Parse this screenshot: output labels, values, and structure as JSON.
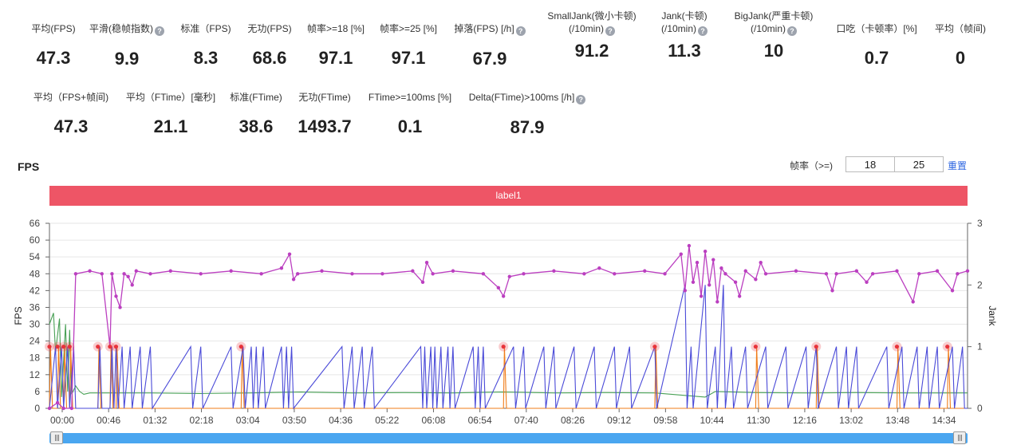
{
  "stats_row1": [
    {
      "label": "平均(FPS)",
      "value": "47.3",
      "help": false
    },
    {
      "label": "平滑(稳帧指数)",
      "value": "9.9",
      "help": true
    },
    {
      "label": "标准（FPS)",
      "value": "8.3",
      "help": false
    },
    {
      "label": "无功(FPS)",
      "value": "68.6",
      "help": false
    },
    {
      "label": "帧率>=18 [%]",
      "value": "97.1",
      "help": false
    },
    {
      "label": "帧率>=25 [%]",
      "value": "97.1",
      "help": false
    },
    {
      "label": "掉落(FPS) [/h]",
      "value": "67.9",
      "help": true
    },
    {
      "label": "SmallJank(微小卡顿)",
      "label2": "(/10min)",
      "value": "91.2",
      "help": true
    },
    {
      "label": "Jank(卡顿)",
      "label2": "(/10min)",
      "value": "11.3",
      "help": true
    },
    {
      "label": "BigJank(严重卡顿)",
      "label2": "(/10min)",
      "value": "10",
      "help": true
    },
    {
      "label": "口吃（卡顿率）[%]",
      "value": "0.7",
      "help": false
    },
    {
      "label": "平均（帧间)",
      "value": "0",
      "help": false
    }
  ],
  "stats_row2": [
    {
      "label": "平均（FPS+帧间)",
      "value": "47.3",
      "help": false
    },
    {
      "label": "平均（FTime）[毫秒]",
      "value": "21.1",
      "help": false
    },
    {
      "label": "标准(FTime)",
      "value": "38.6",
      "help": false
    },
    {
      "label": "无功(FTime)",
      "value": "1493.7",
      "help": false
    },
    {
      "label": "FTime>=100ms [%]",
      "value": "0.1",
      "help": false
    },
    {
      "label": "Delta(FTime)>100ms [/h]",
      "value": "87.9",
      "help": true
    }
  ],
  "help_icon": "question-icon",
  "chart_section": {
    "title": "FPS",
    "framerate_label": "帧率（>=)",
    "threshold_low": "18",
    "threshold_high": "25",
    "reset_label": "重置",
    "label_bar_text": "label1"
  },
  "colors": {
    "fps_line": "#bb3fc0",
    "jank_line": "#4a4ad8",
    "green_line": "#48a055",
    "orange_line": "#f07d1a",
    "bigjank_marker": "#e8333a",
    "label_bar": "#ee5566",
    "slider": "#4aa6f0"
  },
  "chart_data": {
    "type": "line",
    "x_unit": "mm:ss",
    "x_range": [
      0,
      910
    ],
    "x_ticks": [
      "00:00",
      "00:46",
      "01:32",
      "02:18",
      "03:04",
      "03:50",
      "04:36",
      "05:22",
      "06:08",
      "06:54",
      "07:40",
      "08:26",
      "09:12",
      "09:58",
      "10:44",
      "11:30",
      "12:16",
      "13:02",
      "13:48",
      "14:34"
    ],
    "y_left": {
      "label": "FPS",
      "ticks": [
        0,
        6,
        12,
        18,
        24,
        30,
        36,
        42,
        48,
        54,
        60,
        66
      ],
      "range": [
        0,
        66
      ]
    },
    "y_right": {
      "label": "Jank",
      "ticks": [
        0,
        1,
        2,
        3
      ],
      "range": [
        0,
        3
      ]
    },
    "series": [
      {
        "name": "FPS",
        "axis": "left",
        "markers": true,
        "points": [
          [
            0,
            0
          ],
          [
            8,
            2
          ],
          [
            14,
            0
          ],
          [
            22,
            0
          ],
          [
            26,
            48
          ],
          [
            40,
            49
          ],
          [
            52,
            48
          ],
          [
            60,
            22
          ],
          [
            62,
            48
          ],
          [
            66,
            40
          ],
          [
            70,
            36
          ],
          [
            74,
            48
          ],
          [
            78,
            47
          ],
          [
            82,
            44
          ],
          [
            86,
            49
          ],
          [
            100,
            48
          ],
          [
            120,
            49
          ],
          [
            150,
            48
          ],
          [
            180,
            49
          ],
          [
            210,
            48
          ],
          [
            230,
            50
          ],
          [
            238,
            55
          ],
          [
            242,
            46
          ],
          [
            246,
            48
          ],
          [
            270,
            49
          ],
          [
            300,
            48
          ],
          [
            330,
            48
          ],
          [
            360,
            49
          ],
          [
            370,
            45
          ],
          [
            374,
            52
          ],
          [
            380,
            48
          ],
          [
            400,
            49
          ],
          [
            430,
            48
          ],
          [
            445,
            43
          ],
          [
            450,
            40
          ],
          [
            456,
            47
          ],
          [
            470,
            48
          ],
          [
            500,
            49
          ],
          [
            530,
            48
          ],
          [
            545,
            50
          ],
          [
            560,
            48
          ],
          [
            590,
            49
          ],
          [
            610,
            48
          ],
          [
            626,
            55
          ],
          [
            630,
            42
          ],
          [
            634,
            58
          ],
          [
            638,
            45
          ],
          [
            642,
            52
          ],
          [
            646,
            40
          ],
          [
            650,
            56
          ],
          [
            654,
            44
          ],
          [
            658,
            53
          ],
          [
            662,
            38
          ],
          [
            666,
            50
          ],
          [
            670,
            48
          ],
          [
            680,
            45
          ],
          [
            684,
            40
          ],
          [
            690,
            49
          ],
          [
            700,
            46
          ],
          [
            705,
            52
          ],
          [
            710,
            48
          ],
          [
            740,
            49
          ],
          [
            770,
            48
          ],
          [
            776,
            42
          ],
          [
            780,
            48
          ],
          [
            800,
            49
          ],
          [
            810,
            45
          ],
          [
            816,
            48
          ],
          [
            840,
            49
          ],
          [
            856,
            38
          ],
          [
            862,
            48
          ],
          [
            880,
            49
          ],
          [
            895,
            42
          ],
          [
            900,
            48
          ],
          [
            910,
            49
          ]
        ]
      },
      {
        "name": "Jank",
        "axis": "right",
        "markers": false,
        "points": [
          [
            0,
            0
          ],
          [
            6,
            1
          ],
          [
            8,
            0
          ],
          [
            12,
            1
          ],
          [
            14,
            0
          ],
          [
            18,
            1
          ],
          [
            20,
            0
          ],
          [
            24,
            1
          ],
          [
            26,
            0
          ],
          [
            48,
            0
          ],
          [
            50,
            1
          ],
          [
            52,
            0
          ],
          [
            60,
            0
          ],
          [
            62,
            1
          ],
          [
            64,
            0
          ],
          [
            66,
            1
          ],
          [
            68,
            0
          ],
          [
            72,
            1
          ],
          [
            74,
            0
          ],
          [
            80,
            1
          ],
          [
            82,
            0
          ],
          [
            90,
            1
          ],
          [
            92,
            0
          ],
          [
            100,
            1
          ],
          [
            102,
            0
          ],
          [
            140,
            1
          ],
          [
            142,
            0
          ],
          [
            150,
            1
          ],
          [
            152,
            0
          ],
          [
            180,
            1
          ],
          [
            182,
            0
          ],
          [
            192,
            1
          ],
          [
            194,
            0
          ],
          [
            200,
            1
          ],
          [
            202,
            0
          ],
          [
            205,
            1
          ],
          [
            207,
            0
          ],
          [
            212,
            1
          ],
          [
            214,
            0
          ],
          [
            230,
            1
          ],
          [
            232,
            0
          ],
          [
            235,
            1
          ],
          [
            237,
            0
          ],
          [
            240,
            1
          ],
          [
            242,
            0
          ],
          [
            290,
            1
          ],
          [
            292,
            0
          ],
          [
            300,
            1
          ],
          [
            302,
            0
          ],
          [
            310,
            1
          ],
          [
            312,
            0
          ],
          [
            320,
            1
          ],
          [
            322,
            0
          ],
          [
            368,
            1
          ],
          [
            370,
            0
          ],
          [
            372,
            1
          ],
          [
            374,
            0
          ],
          [
            378,
            1
          ],
          [
            380,
            0
          ],
          [
            382,
            1
          ],
          [
            384,
            0
          ],
          [
            388,
            1
          ],
          [
            390,
            0
          ],
          [
            395,
            1
          ],
          [
            397,
            0
          ],
          [
            400,
            1
          ],
          [
            402,
            0
          ],
          [
            420,
            1
          ],
          [
            422,
            0
          ],
          [
            425,
            1
          ],
          [
            427,
            0
          ],
          [
            430,
            1
          ],
          [
            432,
            0
          ],
          [
            460,
            1
          ],
          [
            462,
            0
          ],
          [
            470,
            1
          ],
          [
            472,
            0
          ],
          [
            490,
            1
          ],
          [
            492,
            0
          ],
          [
            500,
            1
          ],
          [
            502,
            0
          ],
          [
            520,
            1
          ],
          [
            522,
            0
          ],
          [
            540,
            1
          ],
          [
            542,
            0
          ],
          [
            560,
            1
          ],
          [
            562,
            0
          ],
          [
            575,
            1
          ],
          [
            577,
            0
          ],
          [
            600,
            1
          ],
          [
            602,
            0
          ],
          [
            630,
            2
          ],
          [
            632,
            0
          ],
          [
            636,
            1
          ],
          [
            638,
            0
          ],
          [
            650,
            2
          ],
          [
            652,
            0
          ],
          [
            660,
            1
          ],
          [
            662,
            0
          ],
          [
            668,
            2
          ],
          [
            670,
            0
          ],
          [
            676,
            1
          ],
          [
            678,
            0
          ],
          [
            690,
            1
          ],
          [
            692,
            0
          ],
          [
            710,
            1
          ],
          [
            712,
            0
          ],
          [
            730,
            1
          ],
          [
            732,
            0
          ],
          [
            750,
            1
          ],
          [
            752,
            0
          ],
          [
            760,
            1
          ],
          [
            762,
            0
          ],
          [
            780,
            1
          ],
          [
            782,
            0
          ],
          [
            790,
            1
          ],
          [
            792,
            0
          ],
          [
            800,
            1
          ],
          [
            802,
            0
          ],
          [
            830,
            1
          ],
          [
            832,
            0
          ],
          [
            845,
            1
          ],
          [
            847,
            0
          ],
          [
            860,
            1
          ],
          [
            862,
            0
          ],
          [
            870,
            1
          ],
          [
            872,
            0
          ],
          [
            880,
            1
          ],
          [
            882,
            0
          ],
          [
            895,
            1
          ],
          [
            897,
            0
          ],
          [
            905,
            1
          ],
          [
            907,
            0
          ],
          [
            910,
            0
          ]
        ]
      },
      {
        "name": "Green",
        "axis": "left",
        "markers": false,
        "points": [
          [
            0,
            30
          ],
          [
            4,
            34
          ],
          [
            6,
            20
          ],
          [
            10,
            32
          ],
          [
            12,
            4
          ],
          [
            16,
            30
          ],
          [
            18,
            6
          ],
          [
            20,
            28
          ],
          [
            22,
            5
          ],
          [
            26,
            8
          ],
          [
            30,
            6
          ],
          [
            34,
            5
          ],
          [
            40,
            5.5
          ],
          [
            100,
            5.5
          ],
          [
            150,
            5.3
          ],
          [
            200,
            5.5
          ],
          [
            250,
            5.8
          ],
          [
            300,
            5.5
          ],
          [
            350,
            5.6
          ],
          [
            400,
            5.5
          ],
          [
            450,
            5.8
          ],
          [
            500,
            5.5
          ],
          [
            550,
            5.6
          ],
          [
            600,
            5.5
          ],
          [
            650,
            4
          ],
          [
            660,
            6
          ],
          [
            700,
            5.6
          ],
          [
            750,
            5.5
          ],
          [
            800,
            5.6
          ],
          [
            850,
            5.5
          ],
          [
            900,
            5.5
          ],
          [
            910,
            5.5
          ]
        ]
      },
      {
        "name": "Orange",
        "axis": "left",
        "markers": false,
        "points": [
          [
            0,
            0
          ],
          [
            1,
            22
          ],
          [
            3,
            0
          ],
          [
            8,
            0
          ],
          [
            9,
            22
          ],
          [
            11,
            0
          ],
          [
            14,
            0
          ],
          [
            15,
            22
          ],
          [
            17,
            0
          ],
          [
            20,
            0
          ],
          [
            21,
            22
          ],
          [
            23,
            0
          ],
          [
            48,
            0
          ],
          [
            49,
            22
          ],
          [
            51,
            0
          ],
          [
            60,
            0
          ],
          [
            61,
            22
          ],
          [
            63,
            0
          ],
          [
            66,
            0
          ],
          [
            67,
            22
          ],
          [
            69,
            0
          ],
          [
            190,
            0
          ],
          [
            191,
            22
          ],
          [
            193,
            0
          ],
          [
            450,
            0
          ],
          [
            451,
            22
          ],
          [
            453,
            0
          ],
          [
            600,
            0
          ],
          [
            601,
            22
          ],
          [
            603,
            0
          ],
          [
            700,
            0
          ],
          [
            701,
            22
          ],
          [
            703,
            0
          ],
          [
            760,
            0
          ],
          [
            761,
            22
          ],
          [
            763,
            0
          ],
          [
            840,
            0
          ],
          [
            841,
            22
          ],
          [
            843,
            0
          ],
          [
            890,
            0
          ],
          [
            891,
            22
          ],
          [
            893,
            0
          ],
          [
            910,
            0
          ]
        ]
      }
    ],
    "bigjank_markers_at": [
      0,
      8,
      14,
      20,
      48,
      60,
      66,
      190,
      450,
      600,
      700,
      760,
      840,
      890
    ],
    "bigjank_level": 22
  }
}
